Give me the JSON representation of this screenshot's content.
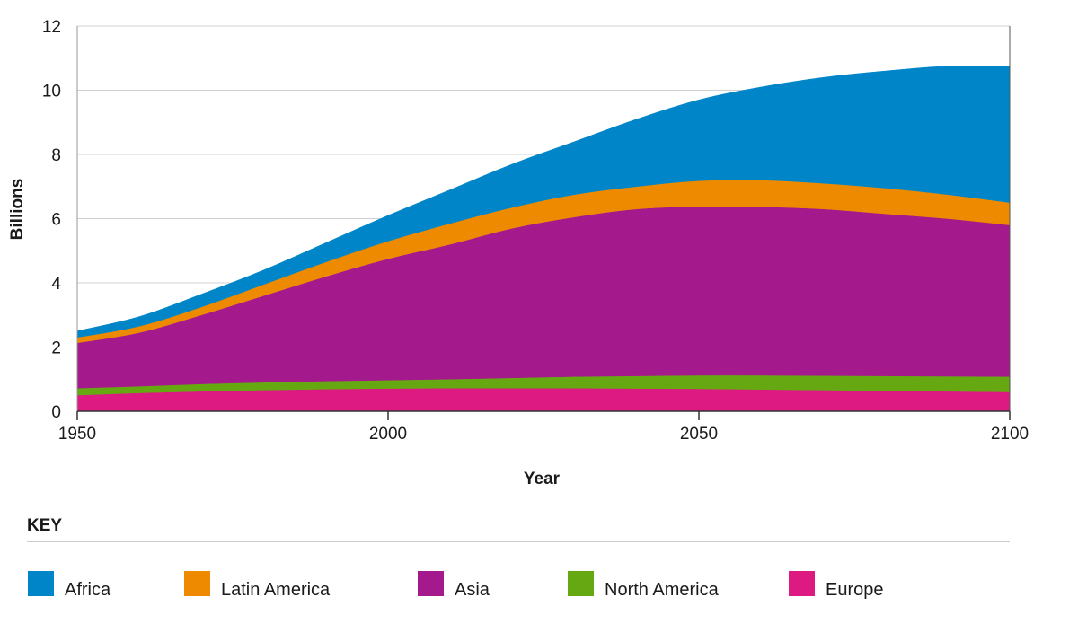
{
  "chart_data": {
    "type": "area",
    "stacked": true,
    "xlabel": "Year",
    "ylabel": "Billions",
    "xlim": [
      1950,
      2100
    ],
    "ylim": [
      0,
      12
    ],
    "x_ticks": [
      1950,
      2000,
      2050,
      2100
    ],
    "y_ticks": [
      0,
      2,
      4,
      6,
      8,
      10,
      12
    ],
    "grid": "horizontal",
    "legend_title": "KEY",
    "legend_position": "bottom",
    "x": [
      1950,
      1960,
      1970,
      1980,
      1990,
      2000,
      2010,
      2020,
      2030,
      2040,
      2050,
      2060,
      2070,
      2080,
      2090,
      2100
    ],
    "series": [
      {
        "name": "Europe",
        "color": "#dc1a82",
        "values": [
          0.5,
          0.57,
          0.62,
          0.66,
          0.69,
          0.71,
          0.72,
          0.72,
          0.72,
          0.71,
          0.7,
          0.68,
          0.66,
          0.64,
          0.62,
          0.6
        ]
      },
      {
        "name": "North America",
        "color": "#66a811",
        "values": [
          0.22,
          0.21,
          0.23,
          0.24,
          0.25,
          0.26,
          0.28,
          0.32,
          0.36,
          0.39,
          0.42,
          0.44,
          0.45,
          0.46,
          0.47,
          0.48
        ]
      },
      {
        "name": "Asia",
        "color": "#a4198c",
        "values": [
          1.41,
          1.67,
          2.15,
          2.7,
          3.26,
          3.78,
          4.2,
          4.66,
          4.97,
          5.2,
          5.26,
          5.25,
          5.19,
          5.05,
          4.91,
          4.72
        ]
      },
      {
        "name": "Latin America",
        "color": "#ee8a00",
        "values": [
          0.17,
          0.2,
          0.25,
          0.35,
          0.45,
          0.55,
          0.65,
          0.65,
          0.7,
          0.7,
          0.8,
          0.83,
          0.8,
          0.8,
          0.75,
          0.7
        ]
      },
      {
        "name": "Africa",
        "color": "#0086c8",
        "values": [
          0.2,
          0.3,
          0.4,
          0.45,
          0.6,
          0.8,
          1.05,
          1.35,
          1.65,
          2.1,
          2.52,
          2.9,
          3.3,
          3.65,
          4.0,
          4.25
        ]
      }
    ],
    "legend_order": [
      "Africa",
      "Latin America",
      "Asia",
      "North America",
      "Europe"
    ]
  }
}
